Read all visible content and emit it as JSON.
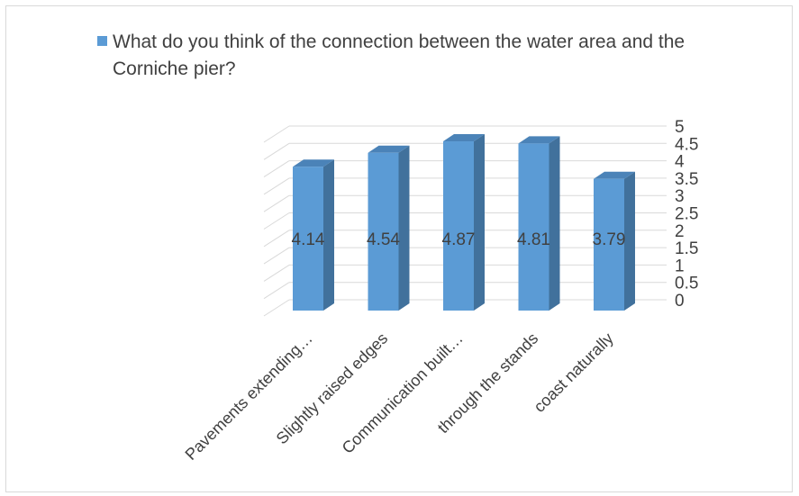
{
  "chart_data": {
    "type": "bar",
    "title": "",
    "xlabel": "",
    "ylabel": "",
    "ylim": [
      0,
      5
    ],
    "yticks": [
      "0",
      "0.5",
      "1",
      "1.5",
      "2",
      "2.5",
      "3",
      "3.5",
      "4",
      "4.5",
      "5"
    ],
    "categories": [
      "Pavements extending…",
      "Slightly raised edges",
      "Communication built…",
      "through the stands",
      "coast naturally"
    ],
    "series": [
      {
        "name": "What do you think of the connection between the water area and the Corniche pier?",
        "values": [
          4.14,
          4.54,
          4.87,
          4.81,
          3.79
        ],
        "labels": [
          "4.14",
          "4.54",
          "4.87",
          "4.81",
          "3.79"
        ]
      }
    ],
    "legend_position": "top",
    "grid": true,
    "colors": {
      "bar_front": "#5b9bd5",
      "bar_side": "#41719c",
      "bar_top": "#4b83b8",
      "grid": "#d9d9d9"
    }
  }
}
